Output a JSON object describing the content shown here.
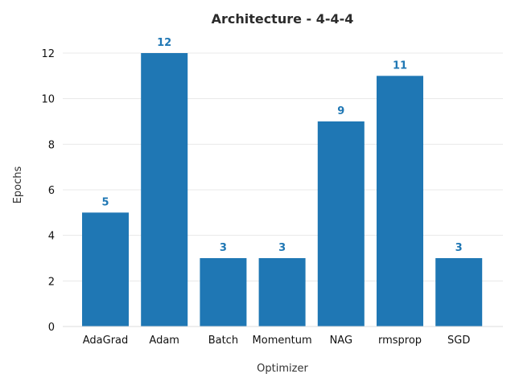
{
  "chart_data": {
    "type": "bar",
    "title": "Architecture - 4-4-4",
    "xlabel": "Optimizer",
    "ylabel": "Epochs",
    "categories": [
      "AdaGrad",
      "Adam",
      "Batch",
      "Momentum",
      "NAG",
      "rmsprop",
      "SGD"
    ],
    "values": [
      5,
      12,
      3,
      3,
      9,
      11,
      3
    ],
    "data_labels": [
      "5",
      "12",
      "3",
      "3",
      "9",
      "11",
      "3"
    ],
    "ylim": [
      0,
      12.6
    ],
    "yticks": [
      0,
      2,
      4,
      6,
      8,
      10,
      12
    ],
    "ytick_labels": [
      "0",
      "2",
      "4",
      "6",
      "8",
      "10",
      "12"
    ],
    "grid": true,
    "legend": "none",
    "colors": {
      "bar": "#1f77b4",
      "data_label": "#1f77b4",
      "grid": "#e8e8e8",
      "text": "#111111"
    }
  }
}
